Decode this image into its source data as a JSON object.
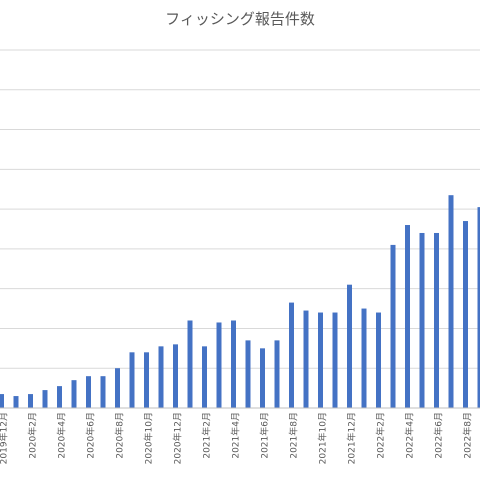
{
  "chart_data": {
    "type": "bar",
    "title": "フィッシング報告件数",
    "xlabel": "",
    "ylabel": "",
    "grid": true,
    "legend": "none",
    "color": "#4472c4",
    "categories": [
      "2019年12月",
      "2020年1月",
      "2020年2月",
      "2020年3月",
      "2020年4月",
      "2020年5月",
      "2020年6月",
      "2020年7月",
      "2020年8月",
      "2020年9月",
      "2020年10月",
      "2020年11月",
      "2020年12月",
      "2021年1月",
      "2021年2月",
      "2021年3月",
      "2021年4月",
      "2021年5月",
      "2021年6月",
      "2021年7月",
      "2021年8月",
      "2021年9月",
      "2021年10月",
      "2021年11月",
      "2021年12月",
      "2022年1月",
      "2022年2月",
      "2022年3月",
      "2022年4月",
      "2022年5月",
      "2022年6月",
      "2022年7月",
      "2022年8月",
      "2022年9月"
    ],
    "shown_tick_labels": [
      "2019年12月",
      "2020年2月",
      "2020年4月",
      "2020年6月",
      "2020年8月",
      "2020年10月",
      "2020年12月",
      "2021年2月",
      "2021年4月",
      "2021年6月",
      "2021年8月",
      "2021年10月",
      "2021年12月",
      "2022年2月",
      "2022年4月",
      "2022年6月",
      "2022年8月"
    ],
    "values": [
      0.35,
      0.3,
      0.35,
      0.45,
      0.55,
      0.7,
      0.8,
      0.8,
      1.0,
      1.4,
      1.4,
      1.55,
      1.6,
      2.2,
      1.55,
      2.15,
      2.2,
      1.7,
      1.5,
      1.7,
      2.65,
      2.45,
      2.4,
      2.4,
      3.1,
      2.5,
      2.4,
      4.1,
      4.6,
      4.4,
      4.4,
      5.35,
      4.7,
      5.05
    ],
    "ylim": [
      0,
      9
    ]
  }
}
